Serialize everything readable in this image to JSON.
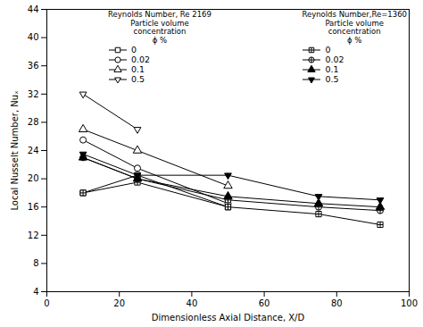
{
  "chart_data": {
    "type": "line",
    "x": [
      10,
      25,
      50,
      75,
      92
    ],
    "series": [
      {
        "name": "0",
        "group": "Reynolds Number, Re 2169\n    Particle volume\n      concentration\n         ϕ %",
        "color": "#000000",
        "marker": "square-open",
        "values": [
          18.0,
          20.5,
          16.0,
          null,
          null
        ]
      },
      {
        "name": "0.02",
        "group": "Reynolds Number, Re 2169\n    Particle volume\n      concentration\n         ϕ %",
        "color": "#000000",
        "marker": "circle-open",
        "values": [
          25.5,
          21.5,
          16.5,
          null,
          null
        ]
      },
      {
        "name": "0.1",
        "group": "Reynolds Number, Re 2169\n    Particle volume\n      concentration\n         ϕ %",
        "color": "#000000",
        "marker": "triangle-up-open",
        "values": [
          27.0,
          24.0,
          19.0,
          null,
          null
        ]
      },
      {
        "name": "0.5",
        "group": "Reynolds Number, Re 2169\n    Particle volume\n      concentration\n         ϕ %",
        "color": "#000000",
        "marker": "triangle-down-open",
        "values": [
          32.0,
          27.0,
          null,
          null,
          null
        ]
      },
      {
        "name": "0",
        "group": "Reynolds Number,Re=1360\n   Particle volume\n     concentration\n        ϕ %",
        "color": "#000000",
        "marker": "square-plus",
        "values": [
          18.0,
          19.5,
          16.0,
          15.0,
          13.5
        ]
      },
      {
        "name": "0.02",
        "group": "Reynolds Number,Re=1360\n   Particle volume\n     concentration\n        ϕ %",
        "color": "#000000",
        "marker": "circle-plus",
        "values": [
          23.0,
          20.0,
          17.0,
          16.0,
          15.5
        ]
      },
      {
        "name": "0.1",
        "group": "Reynolds Number,Re=1360\n   Particle volume\n     concentration\n        ϕ %",
        "color": "#000000",
        "marker": "triangle-up",
        "values": [
          23.0,
          20.0,
          17.5,
          16.5,
          16.0
        ]
      },
      {
        "name": "0.5",
        "group": "Reynolds Number,Re=1360\n   Particle volume\n     concentration\n        ϕ %",
        "color": "#000000",
        "marker": "triangle-down",
        "values": [
          23.5,
          20.5,
          20.5,
          17.5,
          17.0
        ]
      }
    ],
    "xlim": [
      0,
      100
    ],
    "ylim": [
      4,
      44
    ],
    "xticks": [
      0,
      20,
      40,
      60,
      80,
      100
    ],
    "yticks": [
      4,
      8,
      12,
      16,
      20,
      24,
      28,
      32,
      36,
      40,
      44
    ],
    "xlabel": "Dimensionless Axial Distance, X/D",
    "ylabel": "Local Nusselt Number, Nuₓ",
    "grid": false,
    "legend": "top"
  }
}
